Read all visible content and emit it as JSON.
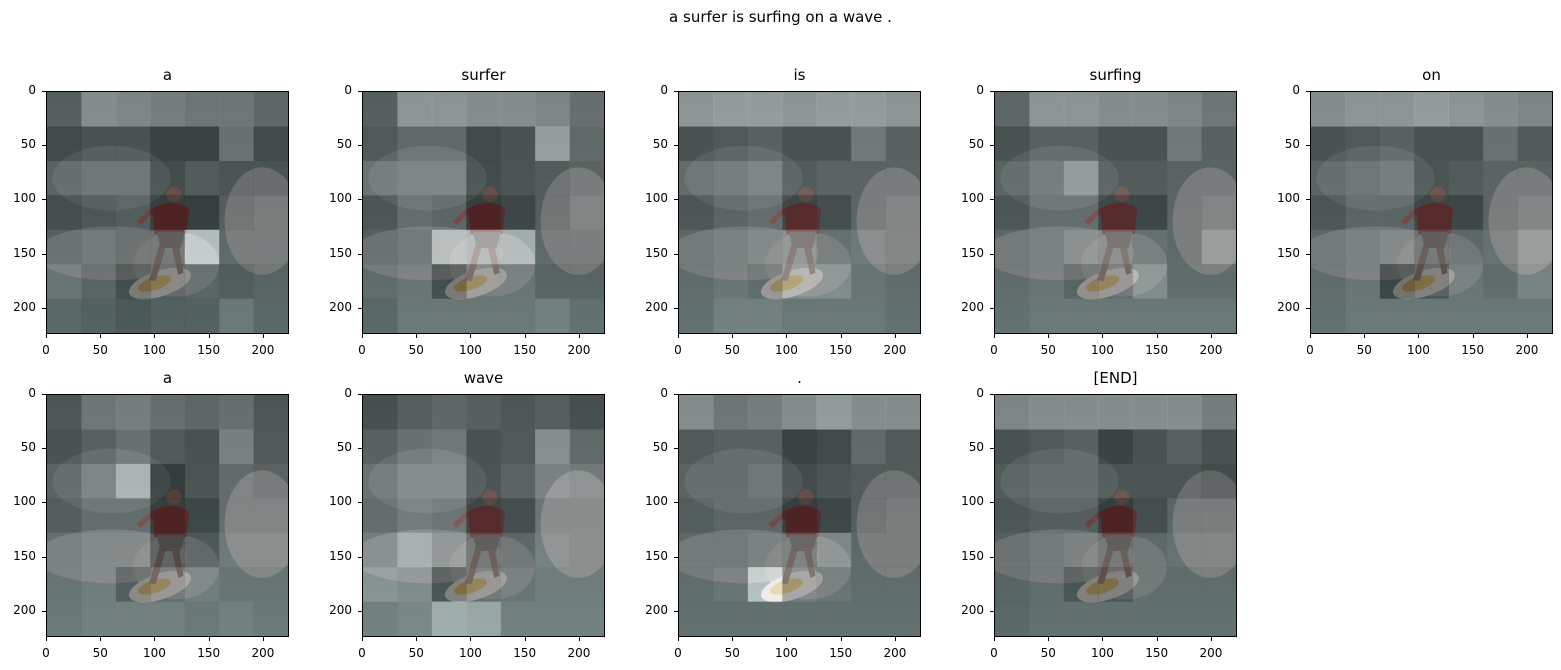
{
  "chart_data": {
    "type": "heatmap",
    "title": "a surfer is surfing on a wave .",
    "xticks": [
      0,
      50,
      100,
      150,
      200
    ],
    "yticks": [
      0,
      50,
      100,
      150,
      200
    ],
    "xlim": [
      0,
      224
    ],
    "ylim": [
      224,
      0
    ],
    "colormap": "gray",
    "panels": [
      {
        "title": "a",
        "grid": [
          [
            0.4,
            0.7,
            0.65,
            0.6,
            0.55,
            0.55,
            0.45
          ],
          [
            0.25,
            0.3,
            0.3,
            0.2,
            0.2,
            0.5,
            0.25
          ],
          [
            0.4,
            0.45,
            0.45,
            0.25,
            0.35,
            0.3,
            0.3
          ],
          [
            0.25,
            0.3,
            0.35,
            0.15,
            0.15,
            0.35,
            0.4
          ],
          [
            0.35,
            0.4,
            0.35,
            0.35,
            0.95,
            0.4,
            0.4
          ],
          [
            0.45,
            0.35,
            0.2,
            0.3,
            0.35,
            0.3,
            0.35
          ],
          [
            0.35,
            0.3,
            0.25,
            0.3,
            0.3,
            0.45,
            0.35
          ]
        ]
      },
      {
        "title": "surfer",
        "grid": [
          [
            0.4,
            0.75,
            0.75,
            0.7,
            0.7,
            0.65,
            0.5
          ],
          [
            0.35,
            0.45,
            0.45,
            0.25,
            0.3,
            0.8,
            0.45
          ],
          [
            0.5,
            0.55,
            0.55,
            0.25,
            0.3,
            0.35,
            0.4
          ],
          [
            0.3,
            0.45,
            0.4,
            0.15,
            0.2,
            0.35,
            0.45
          ],
          [
            0.35,
            0.4,
            0.85,
            0.8,
            0.85,
            0.4,
            0.4
          ],
          [
            0.4,
            0.45,
            0.2,
            0.45,
            0.45,
            0.35,
            0.35
          ],
          [
            0.35,
            0.45,
            0.45,
            0.45,
            0.45,
            0.5,
            0.4
          ]
        ]
      },
      {
        "title": "is",
        "grid": [
          [
            0.75,
            0.8,
            0.8,
            0.75,
            0.8,
            0.8,
            0.75
          ],
          [
            0.3,
            0.35,
            0.4,
            0.3,
            0.3,
            0.55,
            0.4
          ],
          [
            0.45,
            0.5,
            0.55,
            0.35,
            0.4,
            0.4,
            0.4
          ],
          [
            0.3,
            0.4,
            0.45,
            0.2,
            0.25,
            0.4,
            0.45
          ],
          [
            0.4,
            0.45,
            0.5,
            0.55,
            0.45,
            0.5,
            0.45
          ],
          [
            0.4,
            0.45,
            0.4,
            0.6,
            0.6,
            0.45,
            0.4
          ],
          [
            0.4,
            0.5,
            0.5,
            0.45,
            0.45,
            0.45,
            0.4
          ]
        ]
      },
      {
        "title": "surfing",
        "grid": [
          [
            0.45,
            0.75,
            0.75,
            0.7,
            0.7,
            0.65,
            0.55
          ],
          [
            0.3,
            0.4,
            0.4,
            0.3,
            0.3,
            0.55,
            0.4
          ],
          [
            0.4,
            0.5,
            0.7,
            0.35,
            0.35,
            0.4,
            0.4
          ],
          [
            0.3,
            0.45,
            0.45,
            0.2,
            0.2,
            0.4,
            0.45
          ],
          [
            0.4,
            0.45,
            0.55,
            0.5,
            0.45,
            0.4,
            0.6
          ],
          [
            0.4,
            0.45,
            0.35,
            0.4,
            0.6,
            0.4,
            0.4
          ],
          [
            0.4,
            0.45,
            0.45,
            0.45,
            0.45,
            0.45,
            0.45
          ]
        ]
      },
      {
        "title": "on",
        "grid": [
          [
            0.7,
            0.75,
            0.75,
            0.8,
            0.75,
            0.7,
            0.65
          ],
          [
            0.3,
            0.35,
            0.4,
            0.3,
            0.3,
            0.5,
            0.35
          ],
          [
            0.4,
            0.45,
            0.5,
            0.3,
            0.35,
            0.4,
            0.4
          ],
          [
            0.3,
            0.4,
            0.4,
            0.2,
            0.2,
            0.4,
            0.45
          ],
          [
            0.4,
            0.45,
            0.5,
            0.35,
            0.4,
            0.45,
            0.6
          ],
          [
            0.4,
            0.45,
            0.15,
            0.25,
            0.45,
            0.4,
            0.55
          ],
          [
            0.4,
            0.45,
            0.45,
            0.45,
            0.45,
            0.45,
            0.45
          ]
        ]
      },
      {
        "title": "a",
        "grid": [
          [
            0.35,
            0.55,
            0.6,
            0.5,
            0.45,
            0.5,
            0.35
          ],
          [
            0.3,
            0.4,
            0.5,
            0.35,
            0.3,
            0.6,
            0.35
          ],
          [
            0.4,
            0.55,
            0.85,
            0.15,
            0.3,
            0.45,
            0.4
          ],
          [
            0.35,
            0.45,
            0.45,
            0.15,
            0.2,
            0.45,
            0.45
          ],
          [
            0.45,
            0.5,
            0.5,
            0.2,
            0.3,
            0.5,
            0.5
          ],
          [
            0.45,
            0.5,
            0.3,
            0.4,
            0.5,
            0.45,
            0.45
          ],
          [
            0.45,
            0.5,
            0.5,
            0.5,
            0.45,
            0.5,
            0.45
          ]
        ]
      },
      {
        "title": "wave",
        "grid": [
          [
            0.3,
            0.4,
            0.45,
            0.4,
            0.35,
            0.4,
            0.3
          ],
          [
            0.4,
            0.5,
            0.55,
            0.3,
            0.35,
            0.7,
            0.45
          ],
          [
            0.5,
            0.6,
            0.6,
            0.3,
            0.4,
            0.6,
            0.55
          ],
          [
            0.45,
            0.55,
            0.5,
            0.2,
            0.25,
            0.5,
            0.5
          ],
          [
            0.55,
            0.75,
            0.6,
            0.35,
            0.4,
            0.55,
            0.5
          ],
          [
            0.65,
            0.6,
            0.25,
            0.4,
            0.45,
            0.5,
            0.5
          ],
          [
            0.5,
            0.55,
            0.8,
            0.75,
            0.5,
            0.5,
            0.5
          ]
        ]
      },
      {
        "title": ".",
        "grid": [
          [
            0.7,
            0.55,
            0.6,
            0.7,
            0.8,
            0.7,
            0.7
          ],
          [
            0.35,
            0.4,
            0.4,
            0.2,
            0.25,
            0.45,
            0.35
          ],
          [
            0.4,
            0.4,
            0.45,
            0.25,
            0.3,
            0.35,
            0.35
          ],
          [
            0.35,
            0.4,
            0.4,
            0.15,
            0.2,
            0.35,
            0.4
          ],
          [
            0.4,
            0.4,
            0.45,
            0.4,
            0.6,
            0.4,
            0.4
          ],
          [
            0.4,
            0.45,
            0.95,
            0.5,
            0.45,
            0.4,
            0.4
          ],
          [
            0.4,
            0.4,
            0.4,
            0.4,
            0.4,
            0.4,
            0.4
          ]
        ]
      },
      {
        "title": "[END]",
        "grid": [
          [
            0.65,
            0.7,
            0.7,
            0.7,
            0.7,
            0.7,
            0.6
          ],
          [
            0.3,
            0.35,
            0.4,
            0.2,
            0.3,
            0.4,
            0.3
          ],
          [
            0.35,
            0.4,
            0.4,
            0.3,
            0.3,
            0.3,
            0.25
          ],
          [
            0.3,
            0.35,
            0.35,
            0.15,
            0.25,
            0.4,
            0.4
          ],
          [
            0.35,
            0.4,
            0.45,
            0.35,
            0.4,
            0.45,
            0.45
          ],
          [
            0.35,
            0.4,
            0.25,
            0.25,
            0.4,
            0.4,
            0.4
          ],
          [
            0.35,
            0.4,
            0.4,
            0.4,
            0.4,
            0.4,
            0.4
          ]
        ]
      }
    ]
  }
}
